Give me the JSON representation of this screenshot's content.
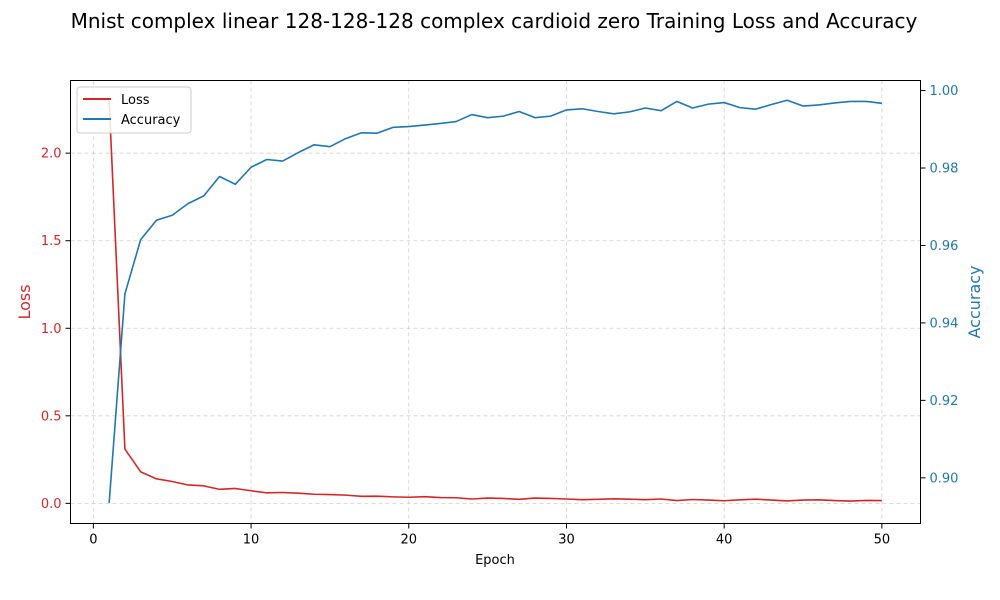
{
  "chart_data": {
    "type": "line",
    "title": "Mnist complex linear 128-128-128 complex cardioid zero Training Loss and Accuracy",
    "xlabel": "Epoch",
    "ylabel_left": "Loss",
    "ylabel_right": "Accuracy",
    "xlim": [
      -1.45,
      52.45
    ],
    "ylim_left": [
      -0.115,
      2.415
    ],
    "ylim_right": [
      0.8882,
      1.0026
    ],
    "x_ticks": [
      0,
      10,
      20,
      30,
      40,
      50
    ],
    "y_ticks_left": [
      0.0,
      0.5,
      1.0,
      1.5,
      2.0
    ],
    "y_ticks_right": [
      0.9,
      0.92,
      0.94,
      0.96,
      0.98,
      1.0
    ],
    "grid": true,
    "legend_position": "top-left",
    "colors": {
      "loss": "#d62728",
      "accuracy": "#1f77b4"
    },
    "x": [
      1,
      2,
      3,
      4,
      5,
      6,
      7,
      8,
      9,
      10,
      11,
      12,
      13,
      14,
      15,
      16,
      17,
      18,
      19,
      20,
      21,
      22,
      23,
      24,
      25,
      26,
      27,
      28,
      29,
      30,
      31,
      32,
      33,
      34,
      35,
      36,
      37,
      38,
      39,
      40,
      41,
      42,
      43,
      44,
      45,
      46,
      47,
      48,
      49,
      50
    ],
    "series": [
      {
        "name": "Loss",
        "axis": "left",
        "values": [
          2.3,
          0.31,
          0.18,
          0.14,
          0.125,
          0.105,
          0.1,
          0.08,
          0.085,
          0.072,
          0.06,
          0.062,
          0.058,
          0.052,
          0.05,
          0.047,
          0.04,
          0.041,
          0.037,
          0.035,
          0.038,
          0.033,
          0.032,
          0.025,
          0.03,
          0.028,
          0.023,
          0.03,
          0.028,
          0.025,
          0.021,
          0.023,
          0.026,
          0.024,
          0.021,
          0.025,
          0.016,
          0.022,
          0.019,
          0.015,
          0.02,
          0.024,
          0.019,
          0.014,
          0.019,
          0.02,
          0.016,
          0.013,
          0.017,
          0.016
        ]
      },
      {
        "name": "Accuracy",
        "axis": "right",
        "values": [
          0.8935,
          0.9475,
          0.9615,
          0.9665,
          0.9678,
          0.9708,
          0.9728,
          0.9778,
          0.9758,
          0.9802,
          0.9822,
          0.9818,
          0.984,
          0.986,
          0.9855,
          0.9876,
          0.9891,
          0.989,
          0.9905,
          0.9907,
          0.9911,
          0.9915,
          0.992,
          0.9938,
          0.993,
          0.9934,
          0.9946,
          0.993,
          0.9934,
          0.995,
          0.9953,
          0.9946,
          0.994,
          0.9945,
          0.9955,
          0.9948,
          0.9972,
          0.9955,
          0.9965,
          0.9969,
          0.9956,
          0.9952,
          0.9964,
          0.9975,
          0.996,
          0.9963,
          0.9968,
          0.9972,
          0.9972,
          0.9967
        ]
      }
    ]
  }
}
